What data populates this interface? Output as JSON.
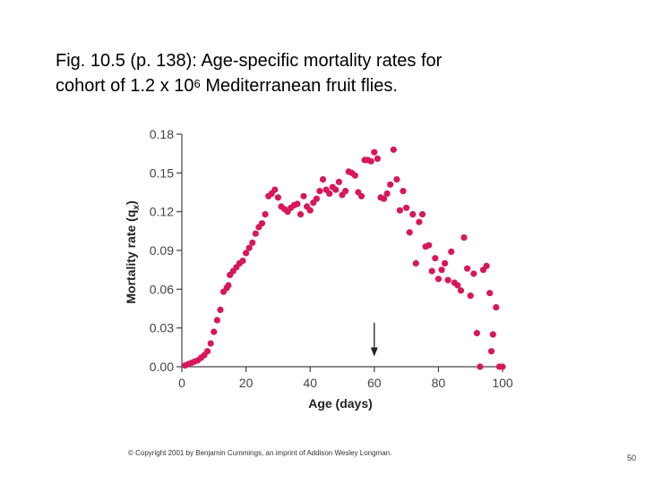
{
  "title": {
    "line1": "Fig. 10.5 (p. 138): Age-specific mortality rates for",
    "line2_pre": "cohort of 1.2 x 10",
    "line2_sup": "6",
    "line2_post": " Mediterranean fruit flies."
  },
  "copyright": "© Copyright 2001 by Benjamin Cummings, an imprint of Addison Wesley Longman.",
  "page_number": "50",
  "colors": {
    "points": "#d6185a",
    "axis": "#444444"
  },
  "chart_data": {
    "type": "scatter",
    "xlabel": "Age (days)",
    "ylabel": "Mortality rate (q",
    "ylabel_sub": "x",
    "ylabel_close": ")",
    "xlim": [
      0,
      100
    ],
    "ylim": [
      0,
      0.18
    ],
    "xticks": [
      0,
      20,
      40,
      60,
      80,
      100
    ],
    "xtick_labels": [
      "0",
      "20",
      "40",
      "60",
      "80",
      "100"
    ],
    "yticks": [
      0,
      0.03,
      0.06,
      0.09,
      0.12,
      0.15,
      0.18
    ],
    "ytick_labels": [
      "0.00",
      "0.03",
      "0.06",
      "0.09",
      "0.12",
      "0.15",
      "0.18"
    ],
    "annotation": {
      "type": "arrow",
      "x": 60,
      "y_from": 0.034,
      "y_to": 0.008
    },
    "points": [
      [
        1,
        0.001
      ],
      [
        2,
        0.002
      ],
      [
        3,
        0.003
      ],
      [
        4,
        0.004
      ],
      [
        5,
        0.005
      ],
      [
        6,
        0.007
      ],
      [
        7,
        0.009
      ],
      [
        8,
        0.012
      ],
      [
        9,
        0.018
      ],
      [
        10,
        0.027
      ],
      [
        11,
        0.036
      ],
      [
        12,
        0.044
      ],
      [
        13,
        0.058
      ],
      [
        14,
        0.061
      ],
      [
        14.5,
        0.063
      ],
      [
        15,
        0.071
      ],
      [
        16,
        0.074
      ],
      [
        17,
        0.077
      ],
      [
        18,
        0.08
      ],
      [
        19,
        0.082
      ],
      [
        20,
        0.088
      ],
      [
        21,
        0.092
      ],
      [
        22,
        0.096
      ],
      [
        23,
        0.103
      ],
      [
        24,
        0.108
      ],
      [
        25,
        0.111
      ],
      [
        26,
        0.118
      ],
      [
        27,
        0.132
      ],
      [
        28,
        0.134
      ],
      [
        29,
        0.137
      ],
      [
        30,
        0.131
      ],
      [
        31,
        0.124
      ],
      [
        32,
        0.122
      ],
      [
        33,
        0.12
      ],
      [
        34,
        0.123
      ],
      [
        35,
        0.125
      ],
      [
        36,
        0.126
      ],
      [
        37,
        0.118
      ],
      [
        38,
        0.132
      ],
      [
        39,
        0.124
      ],
      [
        40,
        0.121
      ],
      [
        41,
        0.127
      ],
      [
        42,
        0.13
      ],
      [
        43,
        0.136
      ],
      [
        44,
        0.145
      ],
      [
        45,
        0.137
      ],
      [
        46,
        0.134
      ],
      [
        47,
        0.139
      ],
      [
        48,
        0.137
      ],
      [
        49,
        0.143
      ],
      [
        50,
        0.133
      ],
      [
        51,
        0.136
      ],
      [
        52,
        0.151
      ],
      [
        53,
        0.15
      ],
      [
        54,
        0.148
      ],
      [
        55,
        0.135
      ],
      [
        56,
        0.132
      ],
      [
        57,
        0.16
      ],
      [
        58,
        0.16
      ],
      [
        59,
        0.159
      ],
      [
        60,
        0.166
      ],
      [
        61,
        0.161
      ],
      [
        62,
        0.131
      ],
      [
        63,
        0.13
      ],
      [
        64,
        0.134
      ],
      [
        65,
        0.141
      ],
      [
        66,
        0.168
      ],
      [
        67,
        0.145
      ],
      [
        68,
        0.121
      ],
      [
        69,
        0.136
      ],
      [
        70,
        0.123
      ],
      [
        71,
        0.104
      ],
      [
        72,
        0.118
      ],
      [
        73,
        0.08
      ],
      [
        74,
        0.112
      ],
      [
        75,
        0.118
      ],
      [
        76,
        0.093
      ],
      [
        77,
        0.094
      ],
      [
        78,
        0.074
      ],
      [
        79,
        0.084
      ],
      [
        80,
        0.068
      ],
      [
        81,
        0.075
      ],
      [
        82,
        0.08
      ],
      [
        83,
        0.067
      ],
      [
        84,
        0.089
      ],
      [
        85,
        0.065
      ],
      [
        86,
        0.063
      ],
      [
        87,
        0.059
      ],
      [
        88,
        0.1
      ],
      [
        89,
        0.076
      ],
      [
        90,
        0.055
      ],
      [
        91,
        0.072
      ],
      [
        92,
        0.026
      ],
      [
        93,
        0.0
      ],
      [
        94,
        0.075
      ],
      [
        95,
        0.078
      ],
      [
        96,
        0.057
      ],
      [
        96.5,
        0.012
      ],
      [
        97,
        0.025
      ],
      [
        98,
        0.046
      ],
      [
        99,
        0.0
      ],
      [
        100,
        0.0
      ]
    ]
  }
}
